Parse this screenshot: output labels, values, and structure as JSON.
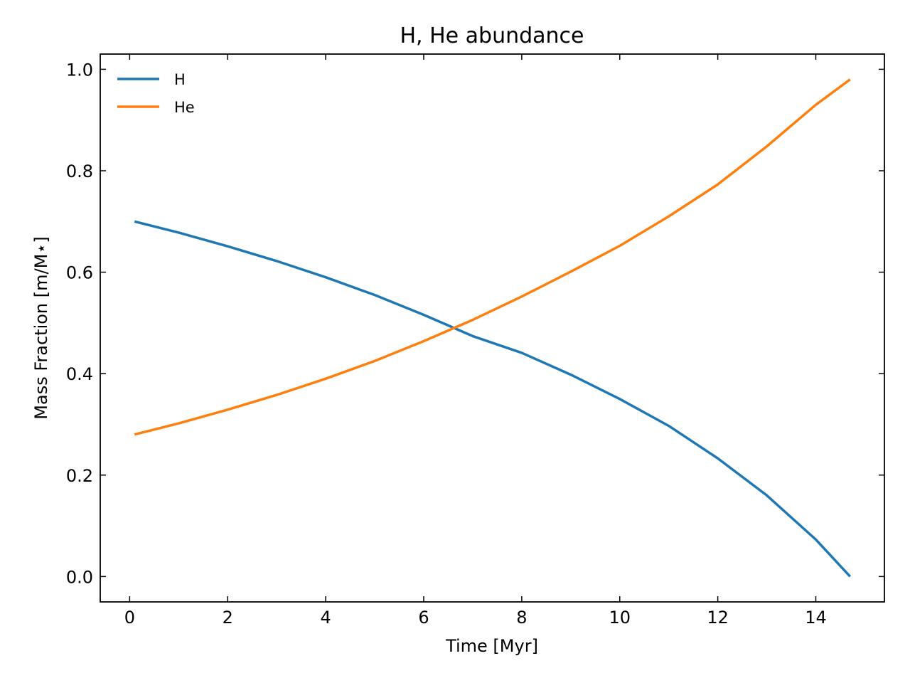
{
  "chart_data": {
    "type": "line",
    "title": "H, He abundance",
    "xlabel": "Time [Myr]",
    "ylabel": "Mass Fraction [m/M⋆]",
    "xlim": [
      -0.6,
      15.4
    ],
    "ylim": [
      -0.05,
      1.03
    ],
    "xticks": [
      0,
      2,
      4,
      6,
      8,
      10,
      12,
      14
    ],
    "yticks": [
      0.0,
      0.2,
      0.4,
      0.6,
      0.8,
      1.0
    ],
    "xtick_labels": [
      "0",
      "2",
      "4",
      "6",
      "8",
      "10",
      "12",
      "14"
    ],
    "ytick_labels": [
      "0.0",
      "0.2",
      "0.4",
      "0.6",
      "0.8",
      "1.0"
    ],
    "grid": false,
    "legend_position": "top-left",
    "series": [
      {
        "name": "H",
        "color": "#1f77b4",
        "x": [
          0.1,
          1,
          2,
          3,
          4,
          5,
          6,
          7,
          8,
          9,
          10,
          11,
          12,
          13,
          14,
          14.7
        ],
        "y": [
          0.7,
          0.678,
          0.651,
          0.622,
          0.59,
          0.555,
          0.516,
          0.474,
          0.441,
          0.398,
          0.35,
          0.297,
          0.233,
          0.16,
          0.073,
          0.0
        ]
      },
      {
        "name": "He",
        "color": "#ff7f0e",
        "x": [
          0.1,
          1,
          2,
          3,
          4,
          5,
          6,
          7,
          8,
          9,
          10,
          11,
          12,
          13,
          14,
          14.7
        ],
        "y": [
          0.28,
          0.302,
          0.329,
          0.358,
          0.39,
          0.425,
          0.464,
          0.506,
          0.552,
          0.601,
          0.652,
          0.71,
          0.773,
          0.848,
          0.93,
          0.98
        ]
      }
    ]
  }
}
